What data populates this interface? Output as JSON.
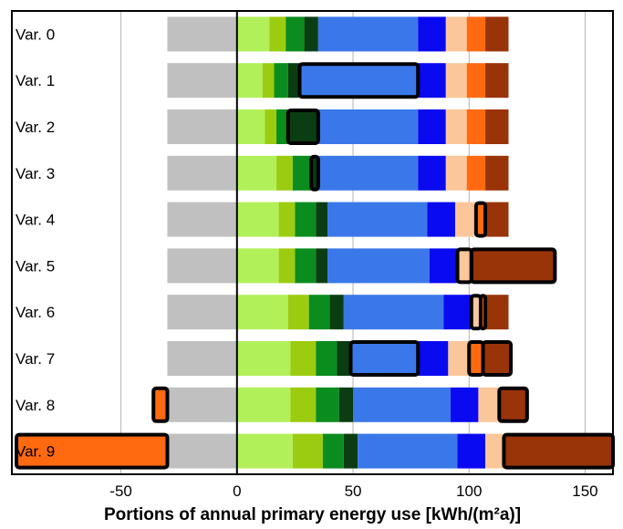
{
  "chart_data": {
    "type": "bar",
    "orientation": "horizontal",
    "stacked": true,
    "title": "",
    "xlabel": "Portions of annual primary energy use [kWh/(m²a)]",
    "ylabel": "",
    "xlim": [
      -97,
      162
    ],
    "xticks": [
      -50,
      0,
      50,
      100,
      150
    ],
    "grid": true,
    "legend": "none",
    "categories": [
      "Var. 0",
      "Var. 1",
      "Var. 2",
      "Var. 3",
      "Var. 4",
      "Var. 5",
      "Var. 6",
      "Var. 7",
      "Var. 8",
      "Var. 9"
    ],
    "series_colors": {
      "negative_orange": "#ff6a10",
      "gray": "#c0c0c0",
      "light_green": "#b2f05a",
      "yellow_green": "#9ccc10",
      "green": "#0a8c1e",
      "dark_green": "#0b3d12",
      "light_blue": "#3a78ea",
      "blue": "#0a0af0",
      "peach": "#fbc79a",
      "orange": "#ff6a10",
      "brown": "#993308"
    },
    "segments": [
      [
        {
          "series": "gray",
          "start": -30,
          "end": 0,
          "highlight": false
        },
        {
          "series": "light_green",
          "start": 0,
          "end": 14,
          "highlight": false
        },
        {
          "series": "yellow_green",
          "start": 14,
          "end": 21,
          "highlight": false
        },
        {
          "series": "green",
          "start": 21,
          "end": 29,
          "highlight": false
        },
        {
          "series": "dark_green",
          "start": 29,
          "end": 35,
          "highlight": false
        },
        {
          "series": "light_blue",
          "start": 35,
          "end": 78,
          "highlight": false
        },
        {
          "series": "blue",
          "start": 78,
          "end": 90,
          "highlight": false
        },
        {
          "series": "peach",
          "start": 90,
          "end": 99,
          "highlight": false
        },
        {
          "series": "orange",
          "start": 99,
          "end": 107,
          "highlight": false
        },
        {
          "series": "brown",
          "start": 107,
          "end": 117,
          "highlight": false
        }
      ],
      [
        {
          "series": "gray",
          "start": -30,
          "end": 0,
          "highlight": false
        },
        {
          "series": "light_green",
          "start": 0,
          "end": 11,
          "highlight": false
        },
        {
          "series": "yellow_green",
          "start": 11,
          "end": 16,
          "highlight": false
        },
        {
          "series": "green",
          "start": 16,
          "end": 22,
          "highlight": false
        },
        {
          "series": "dark_green",
          "start": 22,
          "end": 27,
          "highlight": false
        },
        {
          "series": "light_blue",
          "start": 27,
          "end": 78,
          "highlight": true
        },
        {
          "series": "blue",
          "start": 78,
          "end": 90,
          "highlight": false
        },
        {
          "series": "peach",
          "start": 90,
          "end": 99,
          "highlight": false
        },
        {
          "series": "orange",
          "start": 99,
          "end": 107,
          "highlight": false
        },
        {
          "series": "brown",
          "start": 107,
          "end": 117,
          "highlight": false
        }
      ],
      [
        {
          "series": "gray",
          "start": -30,
          "end": 0,
          "highlight": false
        },
        {
          "series": "light_green",
          "start": 0,
          "end": 12,
          "highlight": false
        },
        {
          "series": "yellow_green",
          "start": 12,
          "end": 17,
          "highlight": false
        },
        {
          "series": "green",
          "start": 17,
          "end": 22,
          "highlight": false
        },
        {
          "series": "dark_green",
          "start": 22,
          "end": 35,
          "highlight": true
        },
        {
          "series": "light_blue",
          "start": 35,
          "end": 78,
          "highlight": false
        },
        {
          "series": "blue",
          "start": 78,
          "end": 90,
          "highlight": false
        },
        {
          "series": "peach",
          "start": 90,
          "end": 99,
          "highlight": false
        },
        {
          "series": "orange",
          "start": 99,
          "end": 107,
          "highlight": false
        },
        {
          "series": "brown",
          "start": 107,
          "end": 117,
          "highlight": false
        }
      ],
      [
        {
          "series": "gray",
          "start": -30,
          "end": 0,
          "highlight": false
        },
        {
          "series": "light_green",
          "start": 0,
          "end": 17,
          "highlight": false
        },
        {
          "series": "yellow_green",
          "start": 17,
          "end": 24,
          "highlight": false
        },
        {
          "series": "green",
          "start": 24,
          "end": 32,
          "highlight": false
        },
        {
          "series": "dark_green",
          "start": 32,
          "end": 35,
          "highlight": true
        },
        {
          "series": "light_blue",
          "start": 35,
          "end": 78,
          "highlight": false
        },
        {
          "series": "blue",
          "start": 78,
          "end": 90,
          "highlight": false
        },
        {
          "series": "peach",
          "start": 90,
          "end": 99,
          "highlight": false
        },
        {
          "series": "orange",
          "start": 99,
          "end": 107,
          "highlight": false
        },
        {
          "series": "brown",
          "start": 107,
          "end": 117,
          "highlight": false
        }
      ],
      [
        {
          "series": "gray",
          "start": -30,
          "end": 0,
          "highlight": false
        },
        {
          "series": "light_green",
          "start": 0,
          "end": 18,
          "highlight": false
        },
        {
          "series": "yellow_green",
          "start": 18,
          "end": 25,
          "highlight": false
        },
        {
          "series": "green",
          "start": 25,
          "end": 34,
          "highlight": false
        },
        {
          "series": "dark_green",
          "start": 34,
          "end": 39,
          "highlight": false
        },
        {
          "series": "light_blue",
          "start": 39,
          "end": 82,
          "highlight": false
        },
        {
          "series": "blue",
          "start": 82,
          "end": 94,
          "highlight": false
        },
        {
          "series": "peach",
          "start": 94,
          "end": 103,
          "highlight": false
        },
        {
          "series": "orange",
          "start": 103,
          "end": 107,
          "highlight": true
        },
        {
          "series": "brown",
          "start": 107,
          "end": 117,
          "highlight": false
        }
      ],
      [
        {
          "series": "gray",
          "start": -30,
          "end": 0,
          "highlight": false
        },
        {
          "series": "light_green",
          "start": 0,
          "end": 18,
          "highlight": false
        },
        {
          "series": "yellow_green",
          "start": 18,
          "end": 25,
          "highlight": false
        },
        {
          "series": "green",
          "start": 25,
          "end": 34,
          "highlight": false
        },
        {
          "series": "dark_green",
          "start": 34,
          "end": 39,
          "highlight": false
        },
        {
          "series": "light_blue",
          "start": 39,
          "end": 83,
          "highlight": false
        },
        {
          "series": "blue",
          "start": 83,
          "end": 95,
          "highlight": false
        },
        {
          "series": "peach",
          "start": 95,
          "end": 101,
          "highlight": true
        },
        {
          "series": "orange",
          "start": 101,
          "end": 101,
          "highlight": false
        },
        {
          "series": "brown",
          "start": 101,
          "end": 137,
          "highlight": true
        }
      ],
      [
        {
          "series": "gray",
          "start": -30,
          "end": 0,
          "highlight": false
        },
        {
          "series": "light_green",
          "start": 0,
          "end": 22,
          "highlight": false
        },
        {
          "series": "yellow_green",
          "start": 22,
          "end": 31,
          "highlight": false
        },
        {
          "series": "green",
          "start": 31,
          "end": 40,
          "highlight": false
        },
        {
          "series": "dark_green",
          "start": 40,
          "end": 46,
          "highlight": false
        },
        {
          "series": "light_blue",
          "start": 46,
          "end": 89,
          "highlight": false
        },
        {
          "series": "blue",
          "start": 89,
          "end": 101,
          "highlight": false
        },
        {
          "series": "peach",
          "start": 101,
          "end": 105,
          "highlight": true
        },
        {
          "series": "orange",
          "start": 105,
          "end": 107,
          "highlight": true
        },
        {
          "series": "brown",
          "start": 107,
          "end": 117,
          "highlight": false
        }
      ],
      [
        {
          "series": "gray",
          "start": -30,
          "end": 0,
          "highlight": false
        },
        {
          "series": "light_green",
          "start": 0,
          "end": 23,
          "highlight": false
        },
        {
          "series": "yellow_green",
          "start": 23,
          "end": 34,
          "highlight": false
        },
        {
          "series": "green",
          "start": 34,
          "end": 43,
          "highlight": false
        },
        {
          "series": "dark_green",
          "start": 43,
          "end": 49,
          "highlight": false
        },
        {
          "series": "light_blue",
          "start": 49,
          "end": 78,
          "highlight": true
        },
        {
          "series": "blue",
          "start": 78,
          "end": 91,
          "highlight": false
        },
        {
          "series": "peach",
          "start": 91,
          "end": 100,
          "highlight": false
        },
        {
          "series": "orange",
          "start": 100,
          "end": 106,
          "highlight": true
        },
        {
          "series": "brown",
          "start": 106,
          "end": 118,
          "highlight": true
        }
      ],
      [
        {
          "series": "negative_orange",
          "start": -36,
          "end": -30,
          "highlight": true
        },
        {
          "series": "gray",
          "start": -30,
          "end": 0,
          "highlight": false
        },
        {
          "series": "light_green",
          "start": 0,
          "end": 23,
          "highlight": false
        },
        {
          "series": "yellow_green",
          "start": 23,
          "end": 34,
          "highlight": false
        },
        {
          "series": "green",
          "start": 34,
          "end": 44,
          "highlight": false
        },
        {
          "series": "dark_green",
          "start": 44,
          "end": 50,
          "highlight": false
        },
        {
          "series": "light_blue",
          "start": 50,
          "end": 92,
          "highlight": false
        },
        {
          "series": "blue",
          "start": 92,
          "end": 104,
          "highlight": false
        },
        {
          "series": "peach",
          "start": 104,
          "end": 113,
          "highlight": false
        },
        {
          "series": "orange",
          "start": 113,
          "end": 113,
          "highlight": false
        },
        {
          "series": "brown",
          "start": 113,
          "end": 125,
          "highlight": true
        }
      ],
      [
        {
          "series": "negative_orange",
          "start": -95,
          "end": -30,
          "highlight": true
        },
        {
          "series": "gray",
          "start": -30,
          "end": 0,
          "highlight": false
        },
        {
          "series": "light_green",
          "start": 0,
          "end": 24,
          "highlight": false
        },
        {
          "series": "yellow_green",
          "start": 24,
          "end": 37,
          "highlight": false
        },
        {
          "series": "green",
          "start": 37,
          "end": 46,
          "highlight": false
        },
        {
          "series": "dark_green",
          "start": 46,
          "end": 52,
          "highlight": false
        },
        {
          "series": "light_blue",
          "start": 52,
          "end": 95,
          "highlight": false
        },
        {
          "series": "blue",
          "start": 95,
          "end": 107,
          "highlight": false
        },
        {
          "series": "peach",
          "start": 107,
          "end": 115,
          "highlight": false
        },
        {
          "series": "orange",
          "start": 115,
          "end": 115,
          "highlight": false
        },
        {
          "series": "brown",
          "start": 115,
          "end": 162,
          "highlight": true
        }
      ]
    ]
  }
}
